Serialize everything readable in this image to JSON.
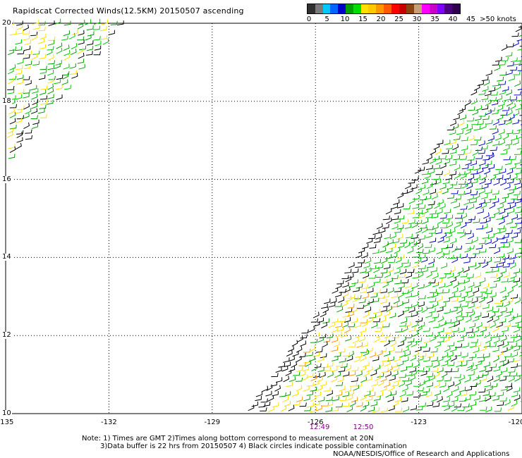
{
  "title": "Rapidscat Corrected Winds(12.5KM) 20150507 ascending",
  "legend": {
    "colors": [
      "#303030",
      "#7a7a7a",
      "#00c8ff",
      "#0064ff",
      "#0000c8",
      "#00a000",
      "#00e000",
      "#ffe000",
      "#ffc800",
      "#ff9600",
      "#ff5a00",
      "#ff0000",
      "#c80000",
      "#8b4513",
      "#c8a078",
      "#ff00ff",
      "#c800c8",
      "#8000ff",
      "#4b0082",
      "#300050"
    ],
    "labels": [
      "0",
      "5",
      "10",
      "15",
      "20",
      "25",
      "30",
      "35",
      "40",
      "45",
      ">50 knots"
    ]
  },
  "axes": {
    "x_ticks": [
      "-135",
      "-132",
      "-129",
      "-126",
      "-123",
      "-120"
    ],
    "y_ticks": [
      "20",
      "18",
      "16",
      "14",
      "12",
      "10"
    ],
    "lon_range": [
      -135,
      -120
    ],
    "lat_range": [
      10,
      20
    ]
  },
  "times": [
    "12:49",
    "12:50"
  ],
  "swath_colors": [
    "#000000",
    "#00a000",
    "#00c800",
    "#0000c8",
    "#ffe000",
    "#ff9600"
  ],
  "notes": {
    "line1": "Note: 1) Times are GMT 2)Times along bottom correspond to measurement at 20N",
    "line2": "3)Data buffer is 22 hrs from 20150507 4) Black circles indicate possible contamination",
    "credit": "NOAA/NESDIS/Office of Research and Applications"
  }
}
